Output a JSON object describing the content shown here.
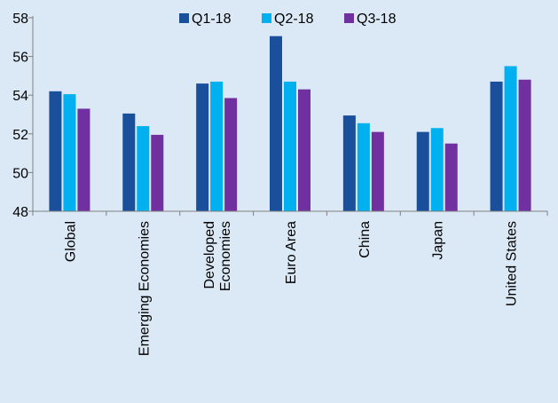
{
  "chart_data": {
    "type": "bar",
    "categories": [
      [
        "Global"
      ],
      [
        "Emerging Economies"
      ],
      [
        "Developed",
        "Economies"
      ],
      [
        "Euro Area"
      ],
      [
        "China"
      ],
      [
        "Japan"
      ],
      [
        "United States"
      ]
    ],
    "series": [
      {
        "name": "Q1-18",
        "color": "#1a4f9c",
        "values": [
          54.2,
          53.05,
          54.6,
          57.05,
          52.95,
          52.1,
          54.7
        ]
      },
      {
        "name": "Q2-18",
        "color": "#00b0ef",
        "values": [
          54.05,
          52.4,
          54.7,
          54.7,
          52.55,
          52.3,
          55.5
        ]
      },
      {
        "name": "Q3-18",
        "color": "#7030a0",
        "values": [
          53.3,
          51.95,
          53.85,
          54.3,
          52.1,
          51.5,
          54.8
        ]
      }
    ],
    "ylim": [
      48,
      58
    ],
    "yticks": [
      48,
      50,
      52,
      54,
      56,
      58
    ],
    "legend": "top-center",
    "grid": false
  }
}
